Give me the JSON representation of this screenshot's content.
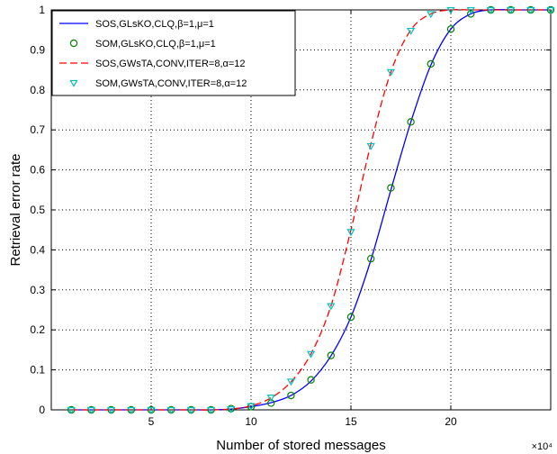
{
  "chart_data": {
    "type": "line",
    "title": "",
    "xlabel": "Number of stored messages",
    "ylabel": "Retrieval error rate",
    "x_multiplier_label": "×10⁴",
    "xlim": [
      0,
      25
    ],
    "ylim": [
      0,
      1
    ],
    "xticks": [
      5,
      10,
      15,
      20
    ],
    "xtick_labels": [
      "5",
      "10",
      "15",
      "20"
    ],
    "yticks": [
      0,
      0.1,
      0.2,
      0.3,
      0.4,
      0.5,
      0.6,
      0.7,
      0.8,
      0.9,
      1
    ],
    "ytick_labels": [
      "0",
      "0.1",
      "0.2",
      "0.3",
      "0.4",
      "0.5",
      "0.6",
      "0.7",
      "0.8",
      "0.9",
      "1"
    ],
    "grid": true,
    "legend_position": "top-left",
    "series": [
      {
        "name": "SOS,GLsKO,CLQ,β=1,μ=1",
        "style": "solid-line",
        "color": "#0000ff",
        "x": [
          1,
          2,
          3,
          4,
          5,
          6,
          7,
          8,
          9,
          10,
          11,
          12,
          13,
          14,
          15,
          16,
          17,
          18,
          19,
          20,
          21,
          22,
          23,
          24,
          25
        ],
        "y": [
          0,
          0,
          0,
          0,
          0,
          0,
          0,
          0,
          0.002,
          0.008,
          0.018,
          0.036,
          0.072,
          0.135,
          0.232,
          0.375,
          0.55,
          0.72,
          0.862,
          0.952,
          0.99,
          1,
          1,
          1,
          1
        ]
      },
      {
        "name": "SOM,GLsKO,CLQ,β=1,μ=1",
        "style": "circle-markers",
        "color": "#008000",
        "x": [
          1,
          2,
          3,
          4,
          5,
          6,
          7,
          8,
          9,
          10,
          11,
          12,
          13,
          14,
          15,
          16,
          17,
          18,
          19,
          20,
          21,
          22,
          23,
          24,
          25
        ],
        "y": [
          0,
          0,
          0,
          0,
          0,
          0,
          0,
          0,
          0.003,
          0.008,
          0.017,
          0.036,
          0.075,
          0.136,
          0.232,
          0.378,
          0.555,
          0.72,
          0.865,
          0.952,
          0.99,
          1,
          1,
          1,
          1
        ]
      },
      {
        "name": "SOS,GWsTA,CONV,ITER=8,α=12",
        "style": "dashed-line",
        "color": "#ff0000",
        "x": [
          1,
          2,
          3,
          4,
          5,
          6,
          7,
          8,
          9,
          10,
          11,
          12,
          13,
          14,
          15,
          16,
          17,
          18,
          19,
          20,
          21,
          22,
          23,
          24,
          25
        ],
        "y": [
          0,
          0,
          0,
          0,
          0,
          0,
          0,
          0,
          0.002,
          0.01,
          0.03,
          0.07,
          0.14,
          0.26,
          0.45,
          0.665,
          0.845,
          0.95,
          0.99,
          1,
          1,
          1,
          1,
          1,
          1
        ]
      },
      {
        "name": "SOM,GWsTA,CONV,ITER=8,α=12",
        "style": "triangle-markers",
        "color": "#00bfbf",
        "x": [
          1,
          2,
          3,
          4,
          5,
          6,
          7,
          8,
          9,
          10,
          11,
          12,
          13,
          14,
          15,
          16,
          17,
          18,
          19,
          20,
          21,
          22,
          23,
          24,
          25
        ],
        "y": [
          0,
          0,
          0,
          0,
          0,
          0,
          0,
          0,
          0.002,
          0.01,
          0.031,
          0.071,
          0.14,
          0.26,
          0.445,
          0.66,
          0.845,
          0.948,
          0.99,
          1,
          1,
          1,
          1,
          1,
          1
        ]
      }
    ]
  }
}
